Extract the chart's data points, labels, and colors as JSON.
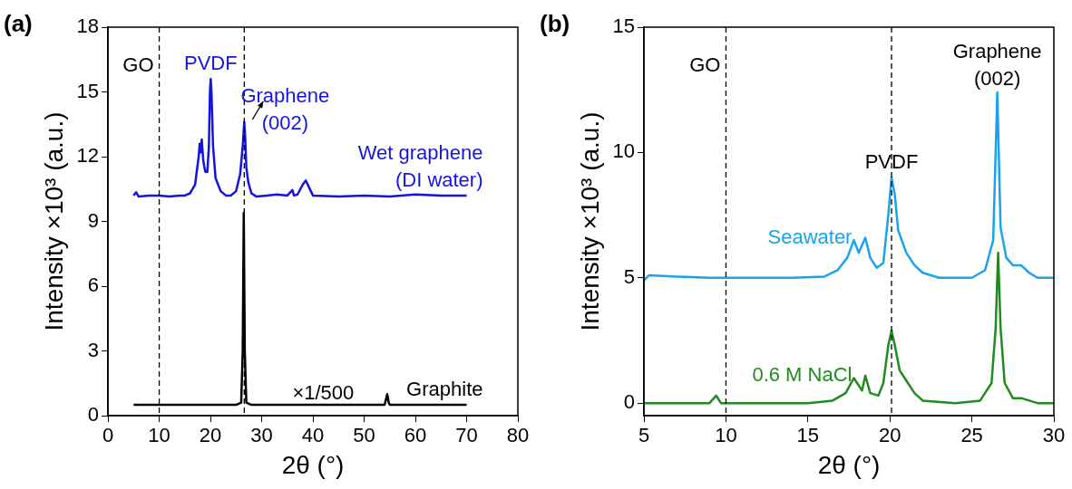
{
  "chart_data": [
    {
      "type": "line",
      "title": "(a)",
      "xlabel": "2θ (°)",
      "ylabel": "Intensity ×10³ (a.u.)",
      "xlim": [
        0,
        80
      ],
      "xticks": [
        0,
        10,
        20,
        30,
        40,
        50,
        60,
        70,
        80
      ],
      "ylim": [
        0,
        18
      ],
      "yticks": [
        0,
        3,
        6,
        9,
        12,
        15,
        18
      ],
      "grid": false,
      "marker": "none",
      "line_style": "solid",
      "ref_lines": [
        {
          "axis": "x",
          "value": 10,
          "label": "GO",
          "line_style": "dashed"
        },
        {
          "axis": "x",
          "value": 26.6,
          "line_style": "dashed"
        }
      ],
      "annotations": [
        {
          "text": "PVDF",
          "x": 20.05,
          "y": 15.6
        },
        {
          "text": "Graphene (002)",
          "x": 26.6,
          "y": 13.6
        },
        {
          "text": "×1/500",
          "x": 42,
          "y": 0.5
        }
      ],
      "series": [
        {
          "name": "Wet graphene (DI water)",
          "color": "#1414e0",
          "x": [
            5,
            5.5,
            6,
            8,
            10,
            12,
            14,
            15,
            16,
            17,
            17.7,
            17.9,
            18.1,
            18.3,
            18.6,
            19,
            19.4,
            19.7,
            19.9,
            20.05,
            20.2,
            20.5,
            21,
            22,
            23,
            24,
            25,
            25.8,
            26.3,
            26.6,
            26.8,
            27,
            27.4,
            28,
            29,
            31,
            33,
            35,
            36,
            36.3,
            37,
            38,
            38.6,
            39.2,
            40,
            45,
            50,
            55,
            60,
            65,
            70
          ],
          "values": [
            10.2,
            10.35,
            10.15,
            10.2,
            10.2,
            10.15,
            10.2,
            10.2,
            10.3,
            10.7,
            12.0,
            12.6,
            12.2,
            12.8,
            11.8,
            11.3,
            11.3,
            12.5,
            15.0,
            15.6,
            15.0,
            12.5,
            11.0,
            10.4,
            10.2,
            10.2,
            10.4,
            11.2,
            12.5,
            13.6,
            12.8,
            11.5,
            10.8,
            10.3,
            10.15,
            10.2,
            10.25,
            10.2,
            10.45,
            10.2,
            10.25,
            10.7,
            10.9,
            10.6,
            10.2,
            10.15,
            10.2,
            10.15,
            10.25,
            10.2,
            10.2
          ]
        },
        {
          "name": "Graphite",
          "color": "#000000",
          "x": [
            5,
            25,
            26,
            26.3,
            26.5,
            26.7,
            27,
            28,
            54,
            54.5,
            54.8,
            55,
            70
          ],
          "values": [
            0.5,
            0.5,
            0.6,
            3,
            9.4,
            3,
            0.6,
            0.5,
            0.5,
            1.0,
            0.6,
            0.5,
            0.5
          ]
        }
      ]
    },
    {
      "type": "line",
      "title": "(b)",
      "xlabel": "2θ (°)",
      "ylabel": "Intensity ×10³ (a.u.)",
      "xlim": [
        5,
        30
      ],
      "xticks": [
        5,
        10,
        15,
        20,
        25,
        30
      ],
      "ylim": [
        -0.5,
        15
      ],
      "yticks": [
        0,
        5,
        10,
        15
      ],
      "grid": false,
      "marker": "none",
      "line_style": "solid",
      "ref_lines": [
        {
          "axis": "x",
          "value": 10,
          "label": "GO",
          "line_style": "dashed"
        },
        {
          "axis": "x",
          "value": 20.1,
          "line_style": "dashed"
        }
      ],
      "annotations": [
        {
          "text": "PVDF",
          "x": 20.1,
          "y": 9.0
        },
        {
          "text": "Graphene (002)",
          "x": 26.55,
          "y": 12.4
        }
      ],
      "series": [
        {
          "name": "Seawater",
          "color": "#1aa3ec",
          "x": [
            5,
            5.3,
            7,
            9,
            10,
            12,
            14,
            16,
            16.8,
            17.4,
            17.8,
            18.1,
            18.5,
            18.8,
            19.2,
            19.6,
            19.9,
            20.1,
            20.3,
            20.5,
            21,
            21.5,
            22,
            23,
            25,
            25.8,
            26.3,
            26.55,
            26.75,
            27.1,
            27.5,
            28,
            28.5,
            29,
            30
          ],
          "values": [
            4.9,
            5.1,
            5.05,
            5.0,
            5.0,
            5.0,
            5.0,
            5.05,
            5.3,
            5.8,
            6.5,
            6.0,
            6.6,
            5.8,
            5.4,
            5.6,
            7.5,
            9.0,
            8.3,
            6.9,
            6.0,
            5.5,
            5.2,
            5.0,
            5.0,
            5.3,
            6.5,
            12.4,
            7.0,
            5.8,
            5.5,
            5.5,
            5.2,
            5.0,
            5.0
          ]
        },
        {
          "name": "0.6 M NaCl",
          "color": "#1e8c1e",
          "x": [
            5,
            7,
            9,
            9.4,
            9.7,
            12,
            15,
            16.5,
            17.3,
            17.8,
            18.1,
            18.3,
            18.5,
            18.8,
            19.3,
            19.6,
            19.9,
            20.1,
            20.3,
            20.6,
            21,
            21.5,
            22,
            24,
            25.5,
            26.2,
            26.45,
            26.6,
            26.75,
            27,
            27.5,
            28,
            29,
            30
          ],
          "values": [
            0.0,
            0.0,
            0.0,
            0.3,
            0.0,
            0.0,
            0.0,
            0.1,
            0.4,
            1.0,
            0.7,
            0.5,
            1.1,
            0.4,
            0.3,
            0.8,
            2.3,
            2.9,
            2.3,
            1.3,
            0.9,
            0.4,
            0.1,
            0.0,
            0.1,
            0.8,
            3,
            6.0,
            3,
            0.8,
            0.2,
            0.2,
            0.0,
            0.0
          ]
        }
      ]
    }
  ]
}
